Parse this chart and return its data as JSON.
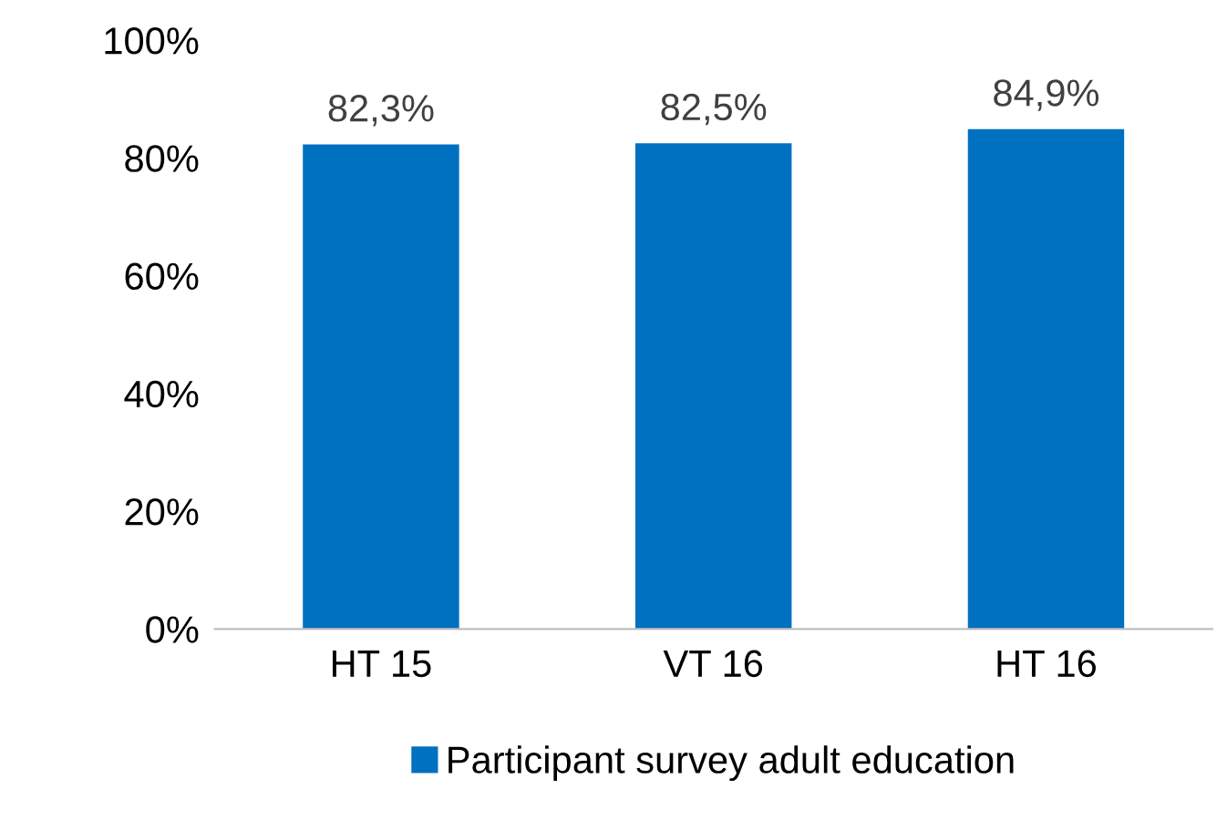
{
  "chart_data": {
    "type": "bar",
    "categories": [
      "HT 15",
      "VT 16",
      "HT 16"
    ],
    "series": [
      {
        "name": "Participant survey adult education",
        "color": "#0070c0",
        "values": [
          82.3,
          82.5,
          84.9
        ]
      }
    ],
    "value_labels": [
      "82,3%",
      "82,5%",
      "84,9%"
    ],
    "ylim": [
      0,
      100
    ],
    "yticks": [
      {
        "value": 0,
        "label": "0%"
      },
      {
        "value": 20,
        "label": "20%"
      },
      {
        "value": 40,
        "label": "40%"
      },
      {
        "value": 60,
        "label": "60%"
      },
      {
        "value": 80,
        "label": "80%"
      },
      {
        "value": 100,
        "label": "100%"
      }
    ],
    "grid": false,
    "legend": "bottom"
  }
}
